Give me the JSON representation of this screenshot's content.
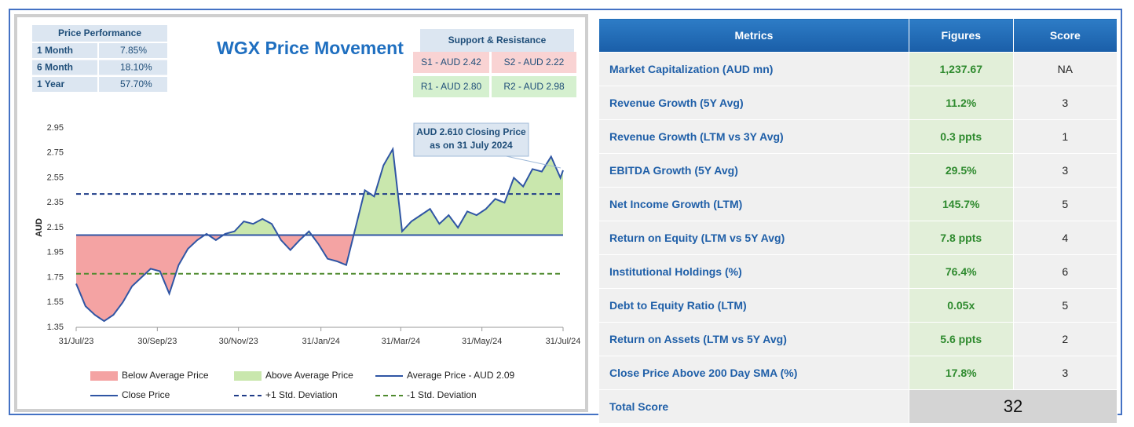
{
  "price_performance": {
    "title": "Price Performance",
    "rows": [
      [
        "1 Month",
        "7.85%"
      ],
      [
        "6 Month",
        "18.10%"
      ],
      [
        "1 Year",
        "57.70%"
      ]
    ]
  },
  "support_resistance": {
    "title": "Support & Resistance",
    "support": [
      "S1 - AUD 2.42",
      "S2 - AUD 2.22"
    ],
    "resistance": [
      "R1 - AUD 2.80",
      "R2 - AUD 2.98"
    ]
  },
  "chart_data": {
    "type": "line",
    "title": "WGX Price Movement",
    "y_label": "AUD",
    "x": [
      "31/Jul/23",
      "07/Aug/23",
      "14/Aug/23",
      "21/Aug/23",
      "28/Aug/23",
      "04/Sep/23",
      "11/Sep/23",
      "18/Sep/23",
      "25/Sep/23",
      "02/Oct/23",
      "09/Oct/23",
      "16/Oct/23",
      "23/Oct/23",
      "30/Oct/23",
      "06/Nov/23",
      "13/Nov/23",
      "20/Nov/23",
      "27/Nov/23",
      "04/Dec/23",
      "11/Dec/23",
      "18/Dec/23",
      "25/Dec/23",
      "01/Jan/24",
      "08/Jan/24",
      "15/Jan/24",
      "22/Jan/24",
      "29/Jan/24",
      "05/Feb/24",
      "12/Feb/24",
      "19/Feb/24",
      "26/Feb/24",
      "04/Mar/24",
      "11/Mar/24",
      "18/Mar/24",
      "25/Mar/24",
      "01/Apr/24",
      "08/Apr/24",
      "15/Apr/24",
      "22/Apr/24",
      "29/Apr/24",
      "06/May/24",
      "13/May/24",
      "20/May/24",
      "27/May/24",
      "03/Jun/24",
      "10/Jun/24",
      "17/Jun/24",
      "24/Jun/24",
      "01/Jul/24",
      "08/Jul/24",
      "15/Jul/24",
      "22/Jul/24",
      "29/Jul/24",
      "31/Jul/24"
    ],
    "series": [
      {
        "name": "Close Price",
        "color": "#2f55a4",
        "values": [
          1.7,
          1.52,
          1.45,
          1.4,
          1.45,
          1.55,
          1.68,
          1.75,
          1.82,
          1.8,
          1.62,
          1.85,
          1.98,
          2.05,
          2.1,
          2.05,
          2.1,
          2.12,
          2.2,
          2.18,
          2.22,
          2.18,
          2.05,
          1.97,
          2.05,
          2.12,
          2.02,
          1.9,
          1.88,
          1.85,
          2.15,
          2.45,
          2.4,
          2.65,
          2.78,
          2.12,
          2.2,
          2.25,
          2.3,
          2.18,
          2.25,
          2.15,
          2.28,
          2.25,
          2.3,
          2.38,
          2.35,
          2.55,
          2.48,
          2.62,
          2.6,
          2.72,
          2.55,
          2.61
        ]
      }
    ],
    "reference_lines": [
      {
        "name": "Average Price - AUD 2.09",
        "value": 2.09,
        "color": "#2f55a4",
        "dashed": false
      },
      {
        "name": "+1 Std. Deviation",
        "value": 2.42,
        "color": "#1f3c88",
        "dashed": true
      },
      {
        "name": "-1 Std. Deviation",
        "value": 1.78,
        "color": "#4e8a2e",
        "dashed": true
      }
    ],
    "fills": {
      "below": {
        "name": "Below Average Price",
        "color": "#f4a3a3"
      },
      "above": {
        "name": "Above Average Price",
        "color": "#c9e7ad"
      }
    },
    "annotation": [
      "AUD 2.610 Closing Price",
      "as on 31 July 2024"
    ],
    "xlim": [
      "31/Jul/23",
      "31/Jul/24"
    ],
    "xticks": [
      "31/Jul/23",
      "30/Sep/23",
      "30/Nov/23",
      "31/Jan/24",
      "31/Mar/24",
      "31/May/24",
      "31/Jul/24"
    ],
    "ylim": [
      1.35,
      2.95
    ],
    "yticks": [
      1.35,
      1.55,
      1.75,
      1.95,
      2.15,
      2.35,
      2.55,
      2.75,
      2.95
    ]
  },
  "metrics_table": {
    "columns": [
      "Metrics",
      "Figures",
      "Score"
    ],
    "rows": [
      [
        "Market Capitalization (AUD mn)",
        "1,237.67",
        "NA"
      ],
      [
        "Revenue Growth (5Y Avg)",
        "11.2%",
        3
      ],
      [
        "Revenue Growth (LTM vs 3Y Avg)",
        "0.3 ppts",
        1
      ],
      [
        "EBITDA Growth (5Y Avg)",
        "29.5%",
        3
      ],
      [
        "Net Income Growth (LTM)",
        "145.7%",
        5
      ],
      [
        "Return on Equity (LTM vs 5Y Avg)",
        "7.8 ppts",
        4
      ],
      [
        "Institutional Holdings (%)",
        "76.4%",
        6
      ],
      [
        "Debt to Equity Ratio (LTM)",
        "0.05x",
        5
      ],
      [
        "Return on Assets (LTM vs 5Y Avg)",
        "5.6 ppts",
        2
      ],
      [
        "Close Price Above 200 Day SMA (%)",
        "17.8%",
        3
      ]
    ],
    "total_label": "Total Score",
    "total": 32
  }
}
